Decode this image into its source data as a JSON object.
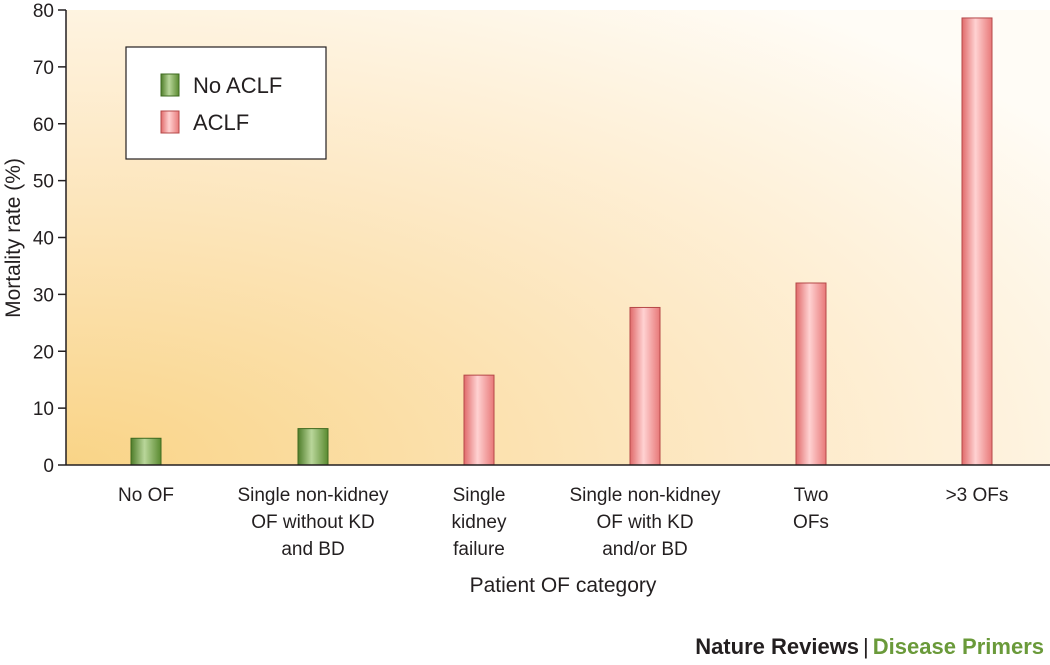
{
  "chart_data": {
    "type": "bar",
    "xlabel": "Patient OF category",
    "ylabel": "Mortality rate (%)",
    "ylim": [
      0,
      80
    ],
    "yticks": [
      0,
      10,
      20,
      30,
      40,
      50,
      60,
      70,
      80
    ],
    "categories": [
      [
        "No OF"
      ],
      [
        "Single non-kidney",
        "OF without KD",
        "and BD"
      ],
      [
        "Single",
        "kidney",
        "failure"
      ],
      [
        "Single non-kidney",
        "OF with KD",
        "and/or BD"
      ],
      [
        "Two",
        "OFs"
      ],
      [
        ">3 OFs"
      ]
    ],
    "values": [
      4.7,
      6.4,
      15.8,
      27.7,
      32.0,
      78.6
    ],
    "groups": [
      "No ACLF",
      "No ACLF",
      "ACLF",
      "ACLF",
      "ACLF",
      "ACLF"
    ],
    "legend": {
      "placement": "top-left",
      "entries": [
        {
          "label": "No ACLF",
          "color": "#7aa84a"
        },
        {
          "label": "ACLF",
          "color": "#f08a8a"
        }
      ]
    },
    "grid": false
  },
  "footer": {
    "brand": "Nature Reviews",
    "separator": "|",
    "series": "Disease Primers"
  }
}
